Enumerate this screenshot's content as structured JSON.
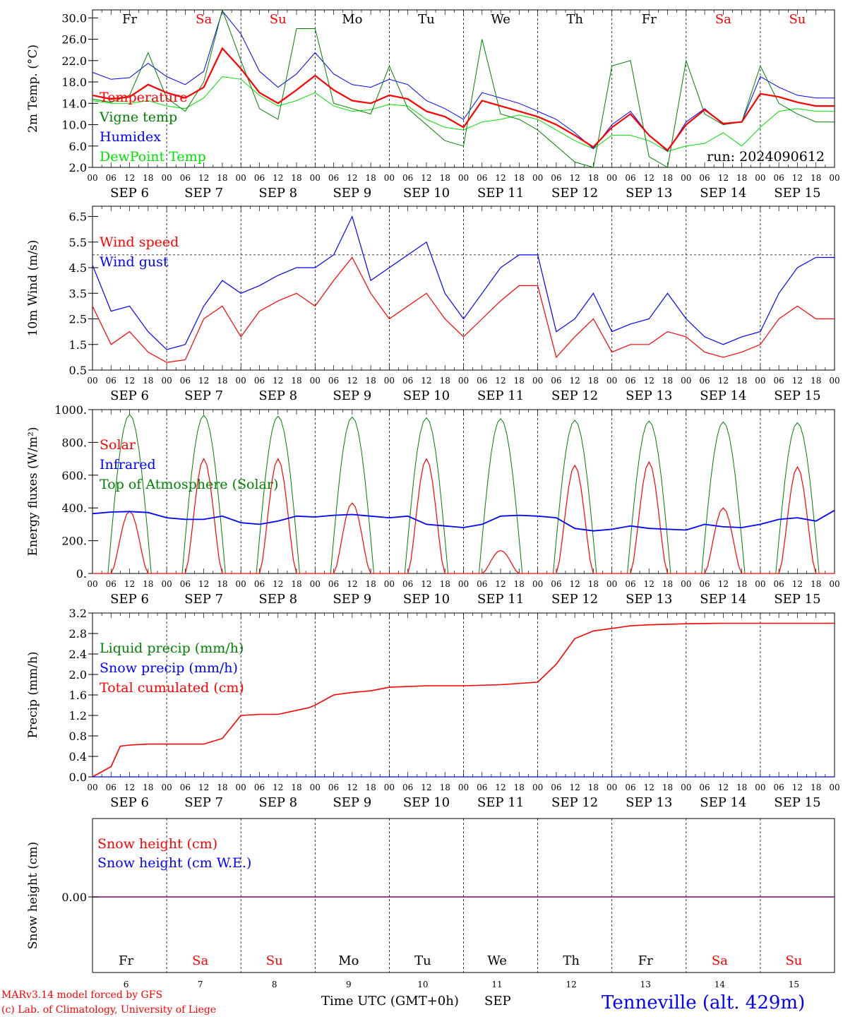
{
  "days_top": [
    "Fr",
    "Sa",
    "Su",
    "Mo",
    "Tu",
    "We",
    "Th",
    "Fr",
    "Sa",
    "Su"
  ],
  "weekend_days": [
    "Sa",
    "Su"
  ],
  "dates": [
    "SEP  6",
    "SEP  7",
    "SEP  8",
    "SEP  9",
    "SEP 10",
    "SEP 11",
    "SEP 12",
    "SEP 13",
    "SEP 14",
    "SEP 15"
  ],
  "day_numbers": [
    "6",
    "7",
    "8",
    "9",
    "10",
    "11",
    "12",
    "13",
    "14",
    "15"
  ],
  "hour_ticks": [
    "00",
    "06",
    "12",
    "18"
  ],
  "hour_end": "00",
  "colors": {
    "red": "#ff0000",
    "green": "#008000",
    "blue": "#0000ff",
    "lightgreen": "#00e000",
    "purple": "#800080",
    "axis": "#000000"
  },
  "footer": {
    "model": "MARv3.14 model forced by GFS",
    "lab": "(c) Lab. of Climatology, University of Liege",
    "xlabel": "Time UTC (GMT+0h)",
    "month": "SEP",
    "station": "Tenneville (alt. 429m)"
  },
  "chart_data": [
    {
      "type": "line",
      "ylabel": "2m Temp. (°C)",
      "ylim": [
        2,
        31.5
      ],
      "yticks": [
        "2.0",
        "6.0",
        "10.0",
        "14.0",
        "18.0",
        "22.0",
        "26.0",
        "30.0"
      ],
      "annotation": "run: 2024090612",
      "x_hours": [
        0,
        6,
        12,
        18,
        24,
        30,
        36,
        42,
        48,
        54,
        60,
        66,
        72,
        78,
        84,
        90,
        96,
        102,
        108,
        114,
        120,
        126,
        132,
        138,
        144,
        150,
        156,
        162,
        168,
        174,
        180,
        186,
        192,
        198,
        204,
        210,
        216,
        222,
        228,
        234
      ],
      "series": [
        {
          "name": "Temperature",
          "color": "red",
          "values": [
            15.5,
            14.8,
            15.2,
            17.5,
            16.0,
            15.0,
            17.0,
            24.3,
            20.5,
            16.0,
            14.0,
            16.5,
            19.2,
            16.5,
            14.5,
            14.0,
            15.5,
            14.8,
            12.5,
            11.5,
            9.5,
            14.5,
            13.5,
            12.5,
            11.5,
            10.0,
            8.0,
            5.8,
            9.5,
            12.0,
            8.0,
            5.2,
            10.0,
            12.8,
            10.2,
            10.5,
            15.8,
            15.2,
            14.2,
            13.5
          ]
        },
        {
          "name": "Vigne temp",
          "color": "green",
          "values": [
            14.8,
            14.2,
            15.5,
            23.5,
            15.0,
            12.5,
            18.0,
            31.5,
            22.0,
            13.0,
            11.0,
            28.0,
            28.0,
            14.0,
            13.0,
            12.0,
            21.0,
            13.0,
            10.0,
            7.0,
            6.0,
            26.0,
            12.0,
            11.0,
            9.0,
            6.0,
            3.0,
            2.0,
            21.0,
            22.0,
            4.0,
            2.0,
            22.0,
            12.0,
            10.0,
            10.5,
            21.0,
            14.0,
            12.0,
            10.5
          ]
        },
        {
          "name": "Humidex",
          "color": "blue",
          "values": [
            19.8,
            18.5,
            18.8,
            21.5,
            19.0,
            17.5,
            20.0,
            31.3,
            27.0,
            20.0,
            17.0,
            19.5,
            23.5,
            19.5,
            17.5,
            17.0,
            18.5,
            17.5,
            14.5,
            13.0,
            11.0,
            16.0,
            15.0,
            14.0,
            12.5,
            11.0,
            8.5,
            5.5,
            10.0,
            12.5,
            8.0,
            5.0,
            10.5,
            13.0,
            10.0,
            10.5,
            19.0,
            17.0,
            15.5,
            15.0
          ]
        },
        {
          "name": "DewPoint Temp",
          "color": "lightgreen",
          "values": [
            14.5,
            14.0,
            14.0,
            14.5,
            13.5,
            13.0,
            15.0,
            19.0,
            18.5,
            15.5,
            13.5,
            14.5,
            16.0,
            13.5,
            12.5,
            12.8,
            13.8,
            13.5,
            11.0,
            9.5,
            9.0,
            10.5,
            11.0,
            11.8,
            11.0,
            9.0,
            7.0,
            5.5,
            8.0,
            8.0,
            7.0,
            5.0,
            6.0,
            6.5,
            8.5,
            6.0,
            9.5,
            12.5,
            13.0,
            12.5
          ]
        }
      ]
    },
    {
      "type": "line",
      "ylabel": "10m Wind (m/s)",
      "ylim": [
        0.5,
        6.9
      ],
      "yticks": [
        "0.5",
        "1.5",
        "2.5",
        "3.5",
        "4.5",
        "5.5",
        "6.5"
      ],
      "reference_line": 5.0,
      "x_hours": [
        0,
        6,
        12,
        18,
        24,
        30,
        36,
        42,
        48,
        54,
        60,
        66,
        72,
        78,
        84,
        90,
        96,
        102,
        108,
        114,
        120,
        126,
        132,
        138,
        144,
        150,
        156,
        162,
        168,
        174,
        180,
        186,
        192,
        198,
        204,
        210,
        216,
        222,
        228,
        234
      ],
      "series": [
        {
          "name": "Wind speed",
          "color": "red",
          "values": [
            3.0,
            1.5,
            2.0,
            1.2,
            0.8,
            0.9,
            2.5,
            3.0,
            1.8,
            2.8,
            3.2,
            3.5,
            3.0,
            4.0,
            4.9,
            3.5,
            2.5,
            3.0,
            3.5,
            2.5,
            1.8,
            2.5,
            3.2,
            3.8,
            3.8,
            1.0,
            1.8,
            2.5,
            1.2,
            1.5,
            1.5,
            2.0,
            1.8,
            1.2,
            1.0,
            1.2,
            1.5,
            2.5,
            3.0,
            2.5
          ]
        },
        {
          "name": "Wind gust",
          "color": "blue",
          "values": [
            4.6,
            2.8,
            3.0,
            2.0,
            1.3,
            1.5,
            3.0,
            4.0,
            3.5,
            3.8,
            4.2,
            4.5,
            4.5,
            5.0,
            6.5,
            4.0,
            4.5,
            5.0,
            5.5,
            3.5,
            2.5,
            3.5,
            4.5,
            5.0,
            5.0,
            2.0,
            2.5,
            3.5,
            2.0,
            2.3,
            2.5,
            3.5,
            2.5,
            1.8,
            1.5,
            1.8,
            2.0,
            3.5,
            4.5,
            4.9
          ]
        }
      ]
    },
    {
      "type": "line",
      "ylabel": "Energy fluxes (W/m²)",
      "ylim": [
        0,
        1000
      ],
      "yticks": [
        "0.",
        "200.",
        "400.",
        "600.",
        "800.",
        "1000."
      ],
      "x_hours": [
        0,
        6,
        12,
        18,
        24,
        30,
        36,
        42,
        48,
        54,
        60,
        66,
        72,
        78,
        84,
        90,
        96,
        102,
        108,
        114,
        120,
        126,
        132,
        138,
        144,
        150,
        156,
        162,
        168,
        174,
        180,
        186,
        192,
        198,
        204,
        210,
        216,
        222,
        228,
        234
      ],
      "series": [
        {
          "name": "Solar",
          "color": "red",
          "daily_peak": [
            380,
            700,
            700,
            430,
            700,
            140,
            660,
            680,
            400,
            650
          ]
        },
        {
          "name": "Infrared",
          "color": "blue",
          "values": [
            365,
            375,
            378,
            372,
            340,
            330,
            330,
            350,
            310,
            300,
            320,
            350,
            345,
            355,
            360,
            350,
            340,
            350,
            300,
            290,
            280,
            300,
            350,
            355,
            350,
            340,
            275,
            260,
            270,
            290,
            275,
            270,
            265,
            300,
            285,
            280,
            300,
            330,
            340,
            320
          ]
        },
        {
          "name": "Top of Atmosphere (Solar)",
          "color": "green",
          "daily_peak": [
            970,
            965,
            960,
            955,
            950,
            945,
            935,
            930,
            925,
            920
          ]
        }
      ]
    },
    {
      "type": "line",
      "ylabel": "Precip (mm/h)",
      "ylim": [
        0,
        3.2
      ],
      "yticks": [
        "0.0",
        "0.4",
        "0.8",
        "1.2",
        "1.6",
        "2.0",
        "2.4",
        "2.8",
        "3.2"
      ],
      "series": [
        {
          "name": "Liquid precip (mm/h)",
          "color": "green"
        },
        {
          "name": "Snow precip (mm/h)",
          "color": "blue"
        },
        {
          "name": "Total cumulated (cm)",
          "color": "red",
          "x_hours": [
            0,
            6,
            9,
            12,
            18,
            24,
            30,
            36,
            42,
            44,
            48,
            54,
            60,
            66,
            70,
            72,
            78,
            84,
            90,
            96,
            108,
            120,
            132,
            144,
            150,
            156,
            162,
            168,
            174,
            180,
            192,
            204,
            216,
            228,
            240
          ],
          "values": [
            0.0,
            0.2,
            0.6,
            0.62,
            0.64,
            0.64,
            0.64,
            0.64,
            0.75,
            0.9,
            1.2,
            1.22,
            1.22,
            1.3,
            1.35,
            1.4,
            1.6,
            1.65,
            1.68,
            1.75,
            1.78,
            1.78,
            1.8,
            1.85,
            2.2,
            2.7,
            2.85,
            2.9,
            2.95,
            2.97,
            2.99,
            3.0,
            3.0,
            3.0,
            3.0
          ]
        }
      ]
    },
    {
      "type": "line",
      "ylabel": "Snow height (cm)",
      "yticks": [
        "0.00"
      ],
      "series": [
        {
          "name": "Snow height (cm)",
          "color": "red",
          "values": [
            0
          ]
        },
        {
          "name": "Snow height (cm W.E.)",
          "color": "blue",
          "values": [
            0
          ]
        }
      ]
    }
  ]
}
